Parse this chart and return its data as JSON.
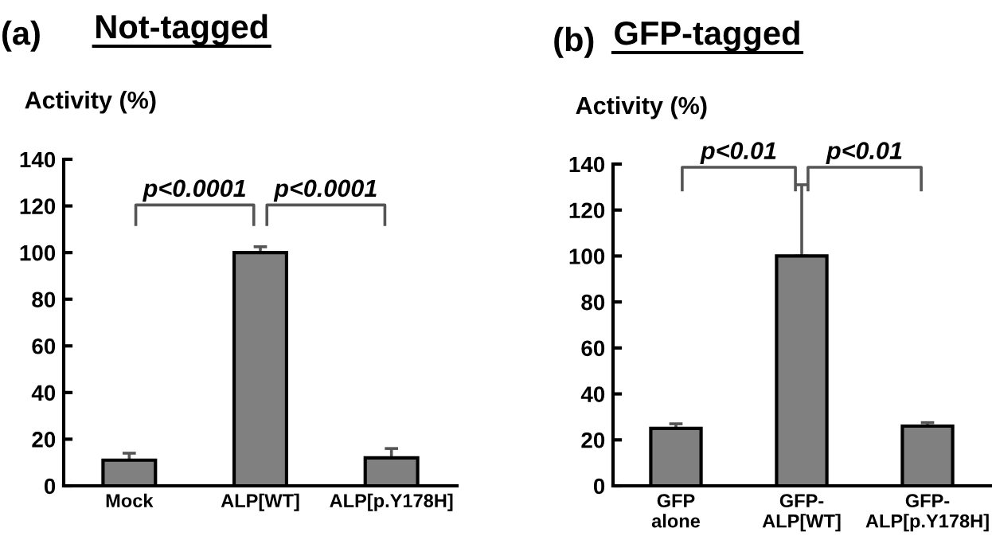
{
  "chart_data": [
    {
      "type": "bar",
      "title": "Not-tagged",
      "ylabel": "Activity (%)",
      "categories": [
        "Mock",
        "ALP[WT]",
        "ALP[p.Y178H]"
      ],
      "values": [
        11,
        100,
        12
      ],
      "errors": [
        [
          11,
          14
        ],
        [
          100,
          102.5
        ],
        [
          12,
          16
        ]
      ],
      "color": "#808080",
      "ylim": [
        0,
        140
      ],
      "yticks": [
        0,
        20,
        40,
        60,
        80,
        100,
        120,
        140
      ],
      "grid": false,
      "legend": false,
      "annotations": [
        "(a)",
        "p<0.0001",
        "p<0.0001"
      ]
    },
    {
      "type": "bar",
      "title": "GFP-tagged",
      "ylabel": "Activity (%)",
      "categories": [
        "GFP\nalone",
        "GFP-\nALP[WT]",
        "GFP-\nALP[p.Y178H]"
      ],
      "values": [
        25,
        100,
        26
      ],
      "errors": [
        [
          25,
          27
        ],
        [
          100,
          131
        ],
        [
          26,
          27.5
        ]
      ],
      "color": "#808080",
      "ylim": [
        0,
        140
      ],
      "yticks": [
        0,
        20,
        40,
        60,
        80,
        100,
        120,
        140
      ],
      "grid": false,
      "legend": false,
      "annotations": [
        "(b)",
        "p<0.01",
        "p<0.01"
      ]
    }
  ]
}
